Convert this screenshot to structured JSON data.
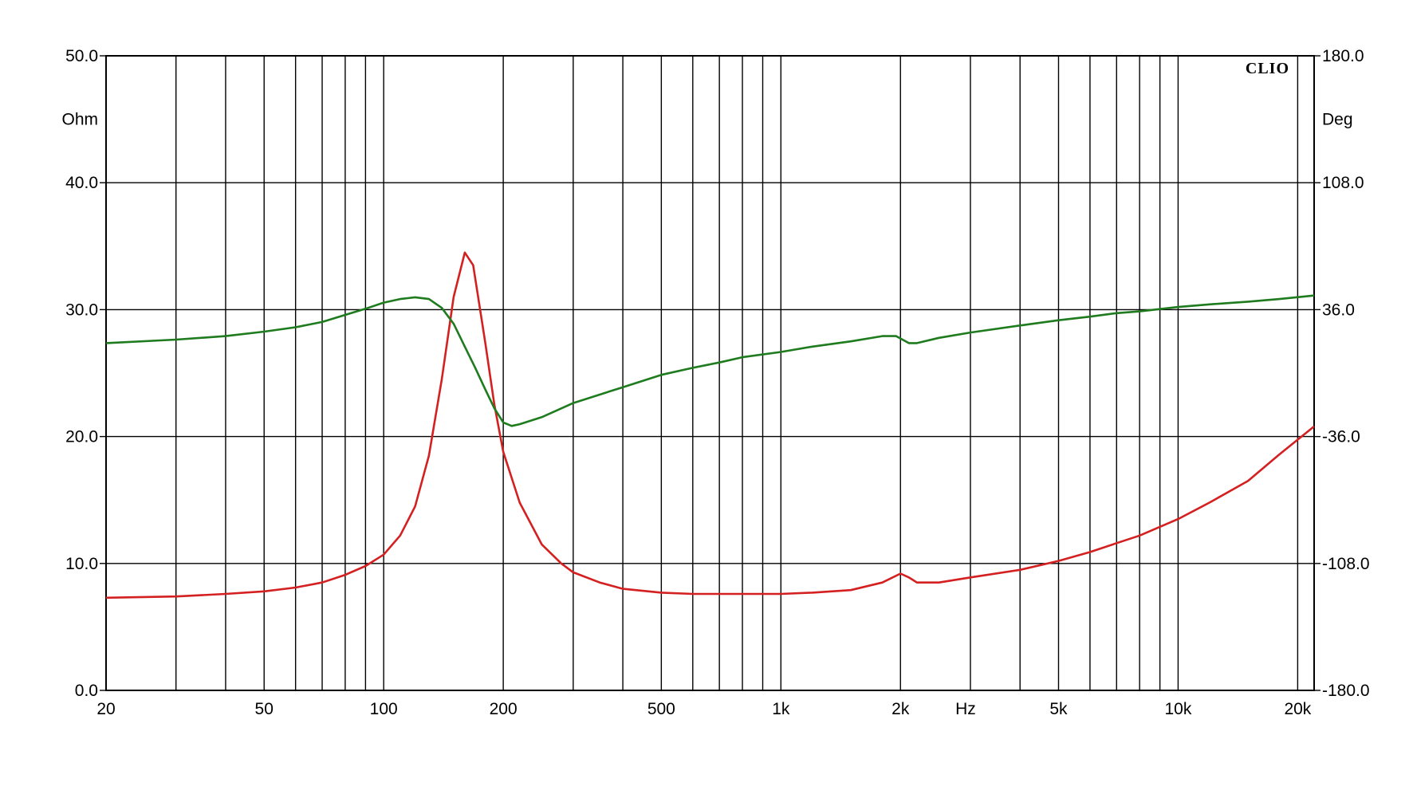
{
  "chart_data": {
    "type": "line",
    "brand": "CLIO",
    "x_unit": "Hz",
    "y_left_unit": "Ohm",
    "y_right_unit": "Deg",
    "x_scale": "log",
    "xlim": [
      20,
      22000
    ],
    "y_left_lim": [
      0,
      50
    ],
    "y_right_lim": [
      -180,
      180
    ],
    "grid": true,
    "x_tick_labels": [
      {
        "value": 20,
        "label": "20"
      },
      {
        "value": 50,
        "label": "50"
      },
      {
        "value": 100,
        "label": "100"
      },
      {
        "value": 200,
        "label": "200"
      },
      {
        "value": 500,
        "label": "500"
      },
      {
        "value": 1000,
        "label": "1k"
      },
      {
        "value": 2000,
        "label": "2k"
      },
      {
        "value": 5000,
        "label": "5k"
      },
      {
        "value": 10000,
        "label": "10k"
      },
      {
        "value": 20000,
        "label": "20k"
      }
    ],
    "x_gridlines": [
      20,
      30,
      40,
      50,
      60,
      70,
      80,
      90,
      100,
      200,
      300,
      400,
      500,
      600,
      700,
      800,
      900,
      1000,
      2000,
      3000,
      4000,
      5000,
      6000,
      7000,
      8000,
      9000,
      10000,
      20000
    ],
    "y_left_ticks": [
      "0.0",
      "10.0",
      "20.0",
      "30.0",
      "40.0",
      "50.0"
    ],
    "y_right_ticks": [
      "-180.0",
      "-108.0",
      "-36.0",
      "36.0",
      "108.0",
      "180.0"
    ],
    "series": [
      {
        "axis": "left",
        "color": "#d42020",
        "points": [
          [
            20,
            7.3
          ],
          [
            30,
            7.4
          ],
          [
            40,
            7.6
          ],
          [
            50,
            7.8
          ],
          [
            60,
            8.1
          ],
          [
            70,
            8.5
          ],
          [
            80,
            9.1
          ],
          [
            90,
            9.8
          ],
          [
            100,
            10.7
          ],
          [
            110,
            12.2
          ],
          [
            120,
            14.5
          ],
          [
            130,
            18.5
          ],
          [
            140,
            24.5
          ],
          [
            150,
            31.0
          ],
          [
            160,
            34.5
          ],
          [
            168,
            33.5
          ],
          [
            180,
            27.5
          ],
          [
            190,
            22.5
          ],
          [
            200,
            18.8
          ],
          [
            220,
            14.8
          ],
          [
            250,
            11.5
          ],
          [
            280,
            10.0
          ],
          [
            300,
            9.3
          ],
          [
            350,
            8.5
          ],
          [
            400,
            8.0
          ],
          [
            500,
            7.7
          ],
          [
            600,
            7.6
          ],
          [
            700,
            7.6
          ],
          [
            800,
            7.6
          ],
          [
            900,
            7.6
          ],
          [
            1000,
            7.6
          ],
          [
            1200,
            7.7
          ],
          [
            1500,
            7.9
          ],
          [
            1800,
            8.5
          ],
          [
            2000,
            9.2
          ],
          [
            2100,
            8.9
          ],
          [
            2200,
            8.5
          ],
          [
            2500,
            8.5
          ],
          [
            3000,
            8.9
          ],
          [
            4000,
            9.5
          ],
          [
            5000,
            10.2
          ],
          [
            6000,
            10.9
          ],
          [
            7000,
            11.6
          ],
          [
            8000,
            12.2
          ],
          [
            10000,
            13.5
          ],
          [
            12000,
            14.8
          ],
          [
            15000,
            16.5
          ],
          [
            18000,
            18.6
          ],
          [
            22000,
            20.8
          ]
        ]
      },
      {
        "axis": "right",
        "color": "#1e7b1e",
        "points": [
          [
            20,
            17
          ],
          [
            30,
            19
          ],
          [
            40,
            21
          ],
          [
            50,
            23.5
          ],
          [
            60,
            26
          ],
          [
            70,
            29
          ],
          [
            80,
            33
          ],
          [
            90,
            36.5
          ],
          [
            100,
            40
          ],
          [
            110,
            42
          ],
          [
            120,
            43
          ],
          [
            130,
            42
          ],
          [
            140,
            37
          ],
          [
            150,
            28
          ],
          [
            160,
            15
          ],
          [
            170,
            3
          ],
          [
            180,
            -9
          ],
          [
            190,
            -20
          ],
          [
            200,
            -28
          ],
          [
            210,
            -30
          ],
          [
            220,
            -29
          ],
          [
            250,
            -25
          ],
          [
            300,
            -17
          ],
          [
            400,
            -8
          ],
          [
            500,
            -1
          ],
          [
            600,
            3
          ],
          [
            700,
            6
          ],
          [
            800,
            9
          ],
          [
            1000,
            12
          ],
          [
            1200,
            15
          ],
          [
            1500,
            18
          ],
          [
            1800,
            21
          ],
          [
            1950,
            21
          ],
          [
            2100,
            17
          ],
          [
            2200,
            17
          ],
          [
            2500,
            20
          ],
          [
            3000,
            23
          ],
          [
            4000,
            27
          ],
          [
            5000,
            30
          ],
          [
            6000,
            32
          ],
          [
            7000,
            34
          ],
          [
            8000,
            35
          ],
          [
            10000,
            37.5
          ],
          [
            12000,
            39
          ],
          [
            15000,
            40.5
          ],
          [
            18000,
            42
          ],
          [
            22000,
            44
          ]
        ]
      }
    ]
  }
}
